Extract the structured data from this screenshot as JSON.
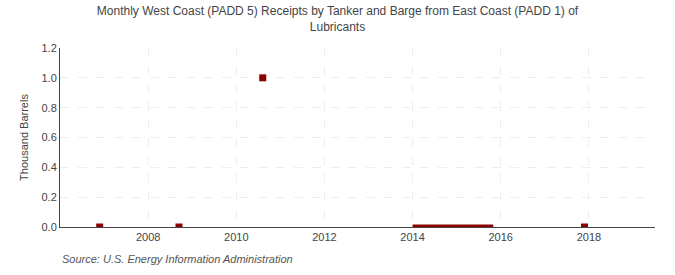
{
  "chart_data": {
    "type": "scatter",
    "title": "Monthly West Coast (PADD 5) Receipts by Tanker and Barge from East Coast (PADD 1) of\nLubricants",
    "ylabel": "Thousand Barrels",
    "annotations": [
      "Source: U.S. Energy Information Administration"
    ],
    "xlim": [
      2006.0,
      2019.5
    ],
    "ylim": [
      0.0,
      1.2
    ],
    "xticks": [
      2008,
      2010,
      2012,
      2014,
      2016,
      2018
    ],
    "yticks": [
      {
        "value": 0.0,
        "label": "0.0"
      },
      0.2,
      0.4,
      0.6,
      0.8,
      {
        "value": 1.0,
        "label": "1.0"
      },
      1.2
    ],
    "grid": true,
    "series": [
      {
        "type": "scatter",
        "marker": "square",
        "color": "#8b0000",
        "x": [
          2006.9,
          2008.7,
          2010.6,
          2017.9
        ],
        "values": [
          0.0,
          0.0,
          1.0,
          0.0
        ]
      },
      {
        "type": "line",
        "line_style": "solid",
        "color": "#8b0000",
        "x": [
          2014.0,
          2015.83
        ],
        "values": [
          0.0,
          0.0
        ]
      }
    ]
  }
}
